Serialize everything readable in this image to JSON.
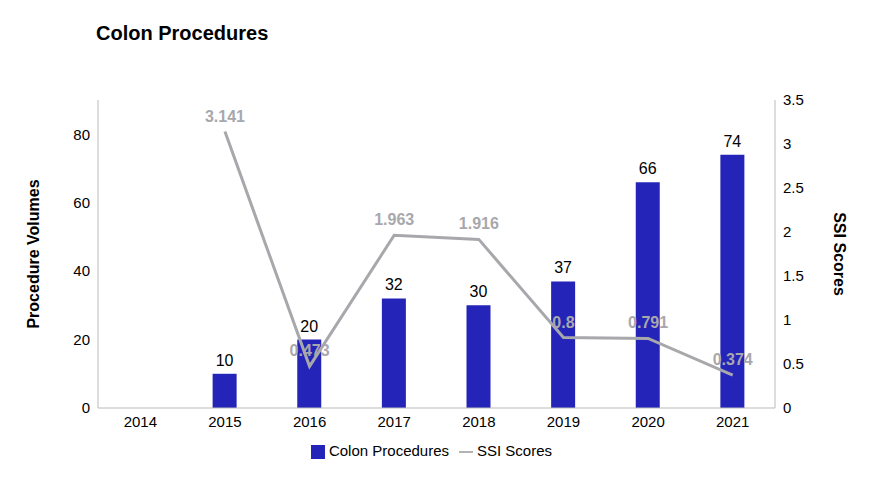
{
  "chart_data": {
    "type": "bar",
    "title": "Colon Procedures",
    "categories": [
      "2014",
      "2015",
      "2016",
      "2017",
      "2018",
      "2019",
      "2020",
      "2021"
    ],
    "series": [
      {
        "name": "Colon Procedures",
        "type": "bar",
        "color": "#2424b8",
        "values": [
          null,
          10,
          20,
          32,
          30,
          37,
          66,
          74
        ]
      },
      {
        "name": "SSI Scores",
        "type": "line",
        "color": "#a8a8ac",
        "axis": "y2",
        "values": [
          null,
          3.141,
          0.473,
          1.963,
          1.916,
          0.8,
          0.791,
          0.374
        ]
      }
    ],
    "ylabel": "Procedure Volumes",
    "y2label": "SSI Scores",
    "ylim": [
      0,
      90
    ],
    "yticks": [
      0,
      20,
      40,
      60,
      80
    ],
    "y2lim": [
      0,
      3.5
    ],
    "y2ticks": [
      0,
      0.5,
      1,
      1.5,
      2,
      2.5,
      3,
      3.5
    ],
    "grid": false,
    "legend": "bottom",
    "data_labels": true
  }
}
